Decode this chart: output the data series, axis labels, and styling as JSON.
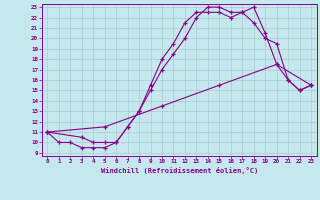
{
  "xlabel": "Windchill (Refroidissement éolien,°C)",
  "background_color": "#c5e8ee",
  "grid_color": "#aacccc",
  "line_color": "#880088",
  "xlim": [
    -0.5,
    23.5
  ],
  "ylim": [
    8.7,
    23.3
  ],
  "xticks": [
    0,
    1,
    2,
    3,
    4,
    5,
    6,
    7,
    8,
    9,
    10,
    11,
    12,
    13,
    14,
    15,
    16,
    17,
    18,
    19,
    20,
    21,
    22,
    23
  ],
  "yticks": [
    9,
    10,
    11,
    12,
    13,
    14,
    15,
    16,
    17,
    18,
    19,
    20,
    21,
    22,
    23
  ],
  "line1_x": [
    0,
    1,
    2,
    3,
    4,
    5,
    6,
    7,
    8,
    9,
    10,
    11,
    12,
    13,
    14,
    15,
    16,
    17,
    18,
    19,
    20,
    21,
    22,
    23
  ],
  "line1_y": [
    11,
    10,
    10,
    9.5,
    9.5,
    9.5,
    10,
    11.5,
    13,
    15.5,
    18,
    19.5,
    21.5,
    22.5,
    22.5,
    22.5,
    22,
    22.5,
    21.5,
    20,
    19.5,
    16,
    15,
    15.5
  ],
  "line2_x": [
    0,
    3,
    4,
    5,
    6,
    7,
    8,
    9,
    10,
    11,
    12,
    13,
    14,
    15,
    16,
    17,
    18,
    19,
    20,
    21,
    22,
    23
  ],
  "line2_y": [
    11,
    10.5,
    10,
    10,
    10,
    11.5,
    13,
    15,
    17,
    18.5,
    20,
    22,
    23,
    23,
    22.5,
    22.5,
    23,
    20.5,
    17.5,
    16,
    15,
    15.5
  ],
  "line3_x": [
    0,
    5,
    10,
    15,
    20,
    23
  ],
  "line3_y": [
    11,
    11.5,
    13.5,
    15.5,
    17.5,
    15.5
  ]
}
